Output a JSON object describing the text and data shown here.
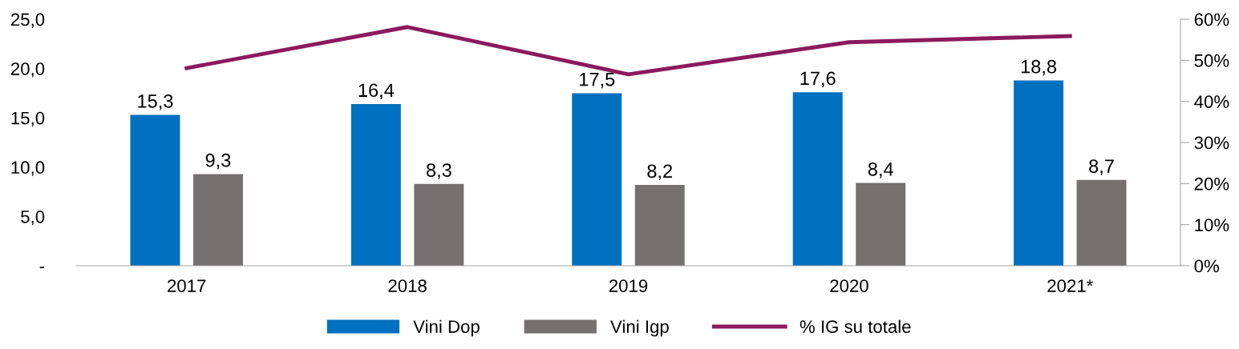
{
  "chart_data": {
    "type": "bar",
    "categories": [
      "2017",
      "2018",
      "2019",
      "2020",
      "2021*"
    ],
    "series": [
      {
        "name": "Vini Dop",
        "color": "#0070c0",
        "values": [
          15.3,
          16.4,
          17.5,
          17.6,
          18.8
        ],
        "value_labels": [
          "15,3",
          "16,4",
          "17,5",
          "17,6",
          "18,8"
        ]
      },
      {
        "name": "Vini Igp",
        "color": "#767171",
        "values": [
          9.3,
          8.3,
          8.2,
          8.4,
          8.7
        ],
        "value_labels": [
          "9,3",
          "8,3",
          "8,2",
          "8,4",
          "8,7"
        ]
      },
      {
        "name": "% IG su totale",
        "type": "line",
        "axis": "y2",
        "color": "#8b1a5c",
        "values": [
          48.1,
          58.1,
          46.6,
          54.4,
          55.9
        ]
      }
    ],
    "ylim": [
      0,
      25
    ],
    "yticks": [
      {
        "value": 0,
        "label": "-"
      },
      {
        "value": 5,
        "label": "5,0"
      },
      {
        "value": 10,
        "label": "10,0"
      },
      {
        "value": 15,
        "label": "15,0"
      },
      {
        "value": 20,
        "label": "20,0"
      },
      {
        "value": 25,
        "label": "25,0"
      }
    ],
    "y2lim": [
      0,
      60
    ],
    "y2ticks": [
      {
        "value": 0,
        "label": "0%"
      },
      {
        "value": 10,
        "label": "10%"
      },
      {
        "value": 20,
        "label": "20%"
      },
      {
        "value": 30,
        "label": "30%"
      },
      {
        "value": 40,
        "label": "40%"
      },
      {
        "value": 50,
        "label": "50%"
      },
      {
        "value": 60,
        "label": "60%"
      }
    ],
    "grid": false,
    "legend": "bottom",
    "marker": "none",
    "line_style": "solid"
  }
}
